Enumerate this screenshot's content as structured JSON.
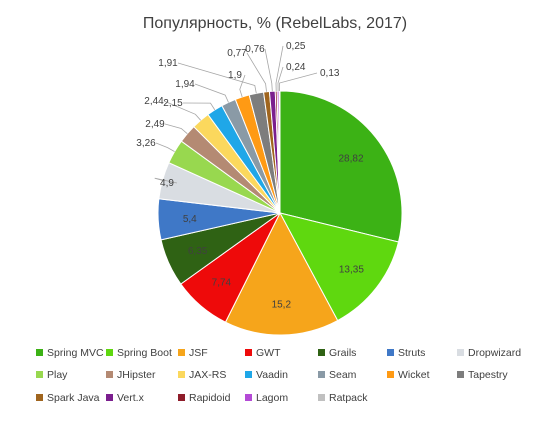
{
  "chart_data": {
    "type": "pie",
    "title": "Популярность, % (RebelLabs, 2017)",
    "legend_position": "bottom",
    "slices": [
      {
        "label": "Spring MVC",
        "value": 28.82,
        "value_label": "28,82",
        "color": "#3cb215"
      },
      {
        "label": "Spring Boot",
        "value": 13.35,
        "value_label": "13,35",
        "color": "#5fd80f"
      },
      {
        "label": "JSF",
        "value": 15.2,
        "value_label": "15,2",
        "color": "#f6a51b"
      },
      {
        "label": "GWT",
        "value": 7.74,
        "value_label": "7,74",
        "color": "#ee0a0a"
      },
      {
        "label": "Grails",
        "value": 6.35,
        "value_label": "6,35",
        "color": "#2f6214"
      },
      {
        "label": "Struts",
        "value": 5.4,
        "value_label": "5,4",
        "color": "#3f78c7"
      },
      {
        "label": "Dropwizard",
        "value": 4.9,
        "value_label": "4,9",
        "color": "#d9dde2"
      },
      {
        "label": "Play",
        "value": 3.26,
        "value_label": "3,26",
        "color": "#98d84f"
      },
      {
        "label": "JHipster",
        "value": 2.49,
        "value_label": "2,49",
        "color": "#b48a73"
      },
      {
        "label": "JAX-RS",
        "value": 2.44,
        "value_label": "2,44",
        "color": "#fbd85d"
      },
      {
        "label": "Vaadin",
        "value": 2.15,
        "value_label": "2,15",
        "color": "#1fa7e8"
      },
      {
        "label": "Seam",
        "value": 1.94,
        "value_label": "1,94",
        "color": "#8a9aa6"
      },
      {
        "label": "Wicket",
        "value": 1.9,
        "value_label": "1,9",
        "color": "#ff9a14"
      },
      {
        "label": "Tapestry",
        "value": 1.91,
        "value_label": "1,91",
        "color": "#7d7d7d"
      },
      {
        "label": "Spark Java",
        "value": 0.77,
        "value_label": "0,77",
        "color": "#a0651e"
      },
      {
        "label": "Vert.x",
        "value": 0.76,
        "value_label": "0,76",
        "color": "#7b1e8e"
      },
      {
        "label": "Rapidoid",
        "value": 0.25,
        "value_label": "0,25",
        "color": "#8e1c2a"
      },
      {
        "label": "Lagom",
        "value": 0.24,
        "value_label": "0,24",
        "color": "#b44ad6"
      },
      {
        "label": "Ratpack",
        "value": 0.13,
        "value_label": "0,13",
        "color": "#c0c0c0"
      }
    ]
  }
}
